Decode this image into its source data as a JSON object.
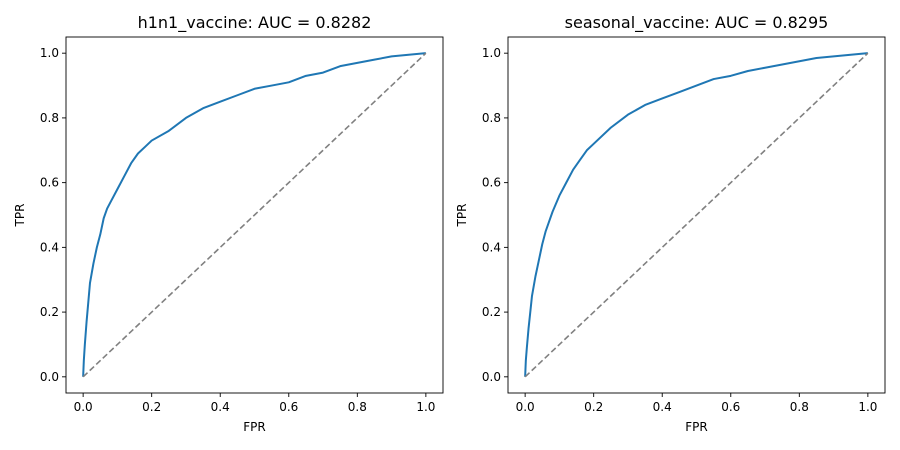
{
  "chart_data": [
    {
      "type": "line",
      "title": "h1n1_vaccine: AUC = 0.8282",
      "xlabel": "FPR",
      "ylabel": "TPR",
      "xlim": [
        0,
        1
      ],
      "ylim": [
        0,
        1
      ],
      "xticks": [
        "0.0",
        "0.2",
        "0.4",
        "0.6",
        "0.8",
        "1.0"
      ],
      "yticks": [
        "0.0",
        "0.2",
        "0.4",
        "0.6",
        "0.8",
        "1.0"
      ],
      "grid": false,
      "series": [
        {
          "style": "roc-curve",
          "color": "#1f77b4",
          "x": [
            0,
            0.002,
            0.005,
            0.01,
            0.015,
            0.02,
            0.03,
            0.04,
            0.05,
            0.06,
            0.07,
            0.08,
            0.1,
            0.12,
            0.14,
            0.16,
            0.18,
            0.2,
            0.25,
            0.3,
            0.35,
            0.4,
            0.45,
            0.5,
            0.55,
            0.6,
            0.65,
            0.7,
            0.75,
            0.8,
            0.85,
            0.9,
            0.95,
            1.0
          ],
          "y": [
            0,
            0.05,
            0.1,
            0.17,
            0.23,
            0.29,
            0.35,
            0.4,
            0.44,
            0.49,
            0.52,
            0.54,
            0.58,
            0.62,
            0.66,
            0.69,
            0.71,
            0.73,
            0.76,
            0.8,
            0.83,
            0.85,
            0.87,
            0.89,
            0.9,
            0.91,
            0.93,
            0.94,
            0.96,
            0.97,
            0.98,
            0.99,
            0.995,
            1.0
          ]
        },
        {
          "style": "diagonal-dashed",
          "color": "#808080",
          "x": [
            0,
            1
          ],
          "y": [
            0,
            1
          ]
        }
      ]
    },
    {
      "type": "line",
      "title": "seasonal_vaccine: AUC = 0.8295",
      "xlabel": "FPR",
      "ylabel": "TPR",
      "xlim": [
        0,
        1
      ],
      "ylim": [
        0,
        1
      ],
      "xticks": [
        "0.0",
        "0.2",
        "0.4",
        "0.6",
        "0.8",
        "1.0"
      ],
      "yticks": [
        "0.0",
        "0.2",
        "0.4",
        "0.6",
        "0.8",
        "1.0"
      ],
      "grid": false,
      "series": [
        {
          "style": "roc-curve",
          "color": "#1f77b4",
          "x": [
            0,
            0.002,
            0.005,
            0.01,
            0.015,
            0.02,
            0.03,
            0.04,
            0.05,
            0.06,
            0.07,
            0.08,
            0.1,
            0.12,
            0.14,
            0.16,
            0.18,
            0.2,
            0.25,
            0.3,
            0.35,
            0.4,
            0.45,
            0.5,
            0.55,
            0.6,
            0.65,
            0.7,
            0.75,
            0.8,
            0.85,
            0.9,
            0.95,
            1.0
          ],
          "y": [
            0,
            0.05,
            0.09,
            0.15,
            0.2,
            0.25,
            0.31,
            0.36,
            0.41,
            0.45,
            0.48,
            0.51,
            0.56,
            0.6,
            0.64,
            0.67,
            0.7,
            0.72,
            0.77,
            0.81,
            0.84,
            0.86,
            0.88,
            0.9,
            0.92,
            0.93,
            0.945,
            0.955,
            0.965,
            0.975,
            0.985,
            0.99,
            0.995,
            1.0
          ]
        },
        {
          "style": "diagonal-dashed",
          "color": "#808080",
          "x": [
            0,
            1
          ],
          "y": [
            0,
            1
          ]
        }
      ]
    }
  ]
}
